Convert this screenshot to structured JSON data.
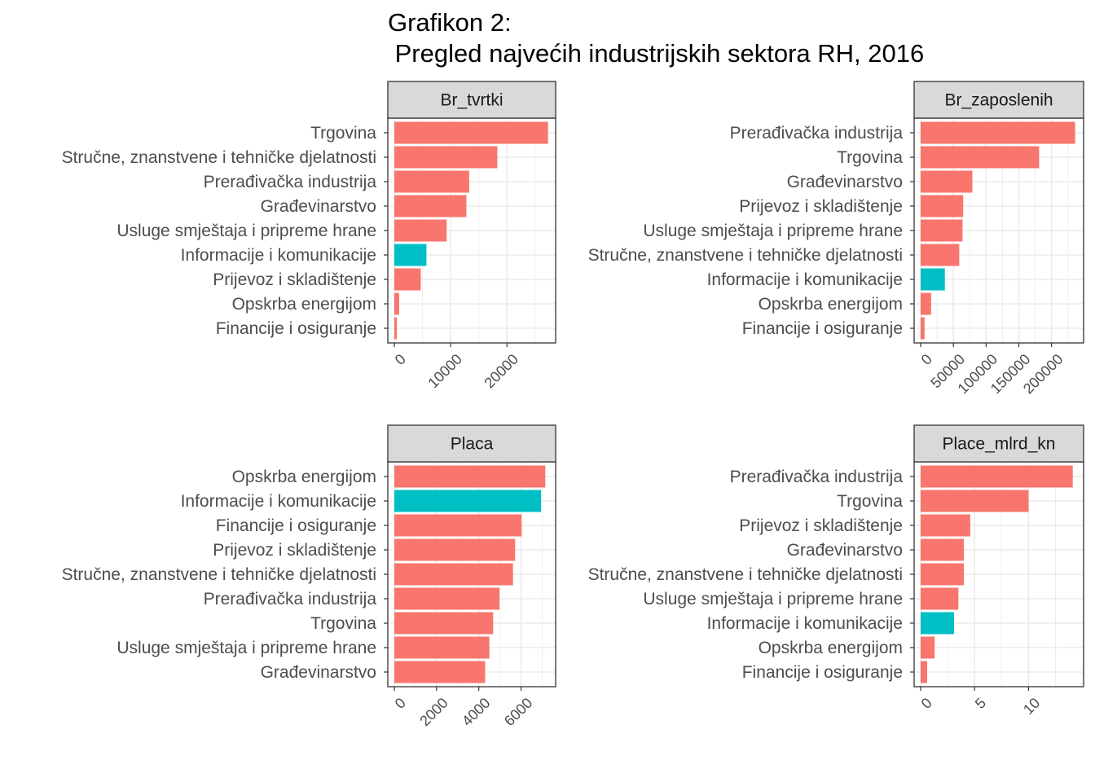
{
  "title_line1": "Grafikon 2:",
  "title_line2": " Pregled najvećih industrijskih sektora RH, 2016",
  "colors": {
    "default": "#F8766D",
    "highlight": "#00BFC4",
    "strip": "#D9D9D9",
    "grid": "#EBEBEB"
  },
  "chart_data": [
    {
      "type": "bar",
      "orientation": "horizontal",
      "panel": "Br_tvrtki",
      "xlim": [
        0,
        27500
      ],
      "ticks": [
        0,
        10000,
        20000
      ],
      "tick_labels": [
        "0",
        "10000",
        "20000"
      ],
      "categories": [
        "Trgovina",
        "Stručne, znanstvene i tehničke djelatnosti",
        "Prerađivačka industrija",
        "Građevinarstvo",
        "Usluge smještaja i pripreme hrane",
        "Informacije i komunikacije",
        "Prijevoz i skladištenje",
        "Opskrba energijom",
        "Financije i osiguranje"
      ],
      "values": [
        27300,
        18300,
        13300,
        12800,
        9300,
        5700,
        4700,
        850,
        450
      ],
      "highlight": [
        false,
        false,
        false,
        false,
        false,
        true,
        false,
        false,
        false
      ]
    },
    {
      "type": "bar",
      "orientation": "horizontal",
      "panel": "Br_zaposlenih",
      "xlim": [
        0,
        239000
      ],
      "ticks": [
        0,
        50000,
        100000,
        150000,
        200000
      ],
      "tick_labels": [
        "0",
        "50000",
        "100000",
        "150000",
        "200000"
      ],
      "categories": [
        "Prerađivačka industrija",
        "Trgovina",
        "Građevinarstvo",
        "Prijevoz i skladištenje",
        "Usluge smještaja i pripreme hrane",
        "Stručne, znanstvene i tehničke djelatnosti",
        "Informacije i komunikacije",
        "Opskrba energijom",
        "Financije i osiguranje"
      ],
      "values": [
        236000,
        181000,
        79000,
        65000,
        64000,
        59000,
        37000,
        16000,
        6000
      ],
      "highlight": [
        false,
        false,
        false,
        false,
        false,
        false,
        true,
        false,
        false
      ]
    },
    {
      "type": "bar",
      "orientation": "horizontal",
      "panel": "Placa",
      "xlim": [
        0,
        7330
      ],
      "ticks": [
        0,
        2000,
        4000,
        6000
      ],
      "tick_labels": [
        "0",
        "2000",
        "4000",
        "6000"
      ],
      "categories": [
        "Opskrba energijom",
        "Informacije i komunikacije",
        "Financije i osiguranje",
        "Prijevoz i skladištenje",
        "Stručne, znanstvene i tehničke djelatnosti",
        "Prerađivačka industrija",
        "Trgovina",
        "Usluge smještaja i pripreme hrane",
        "Građevinarstvo"
      ],
      "values": [
        7150,
        6950,
        6030,
        5720,
        5620,
        4980,
        4680,
        4500,
        4300
      ],
      "highlight": [
        false,
        true,
        false,
        false,
        false,
        false,
        false,
        false,
        false
      ]
    },
    {
      "type": "bar",
      "orientation": "horizontal",
      "panel": "Place_mlrd_kn",
      "xlim": [
        0,
        14.5
      ],
      "ticks": [
        0,
        5,
        10
      ],
      "tick_labels": [
        "0",
        "5",
        "10"
      ],
      "categories": [
        "Prerađivačka industrija",
        "Trgovina",
        "Prijevoz i skladištenje",
        "Građevinarstvo",
        "Stručne, znanstvene i tehničke djelatnosti",
        "Usluge smještaja i pripreme hrane",
        "Informacije i komunikacije",
        "Opskrba energijom",
        "Financije i osiguranje"
      ],
      "values": [
        14.1,
        10.0,
        4.6,
        4.0,
        4.0,
        3.5,
        3.1,
        1.3,
        0.6
      ],
      "highlight": [
        false,
        false,
        false,
        false,
        false,
        false,
        true,
        false,
        false
      ]
    }
  ]
}
